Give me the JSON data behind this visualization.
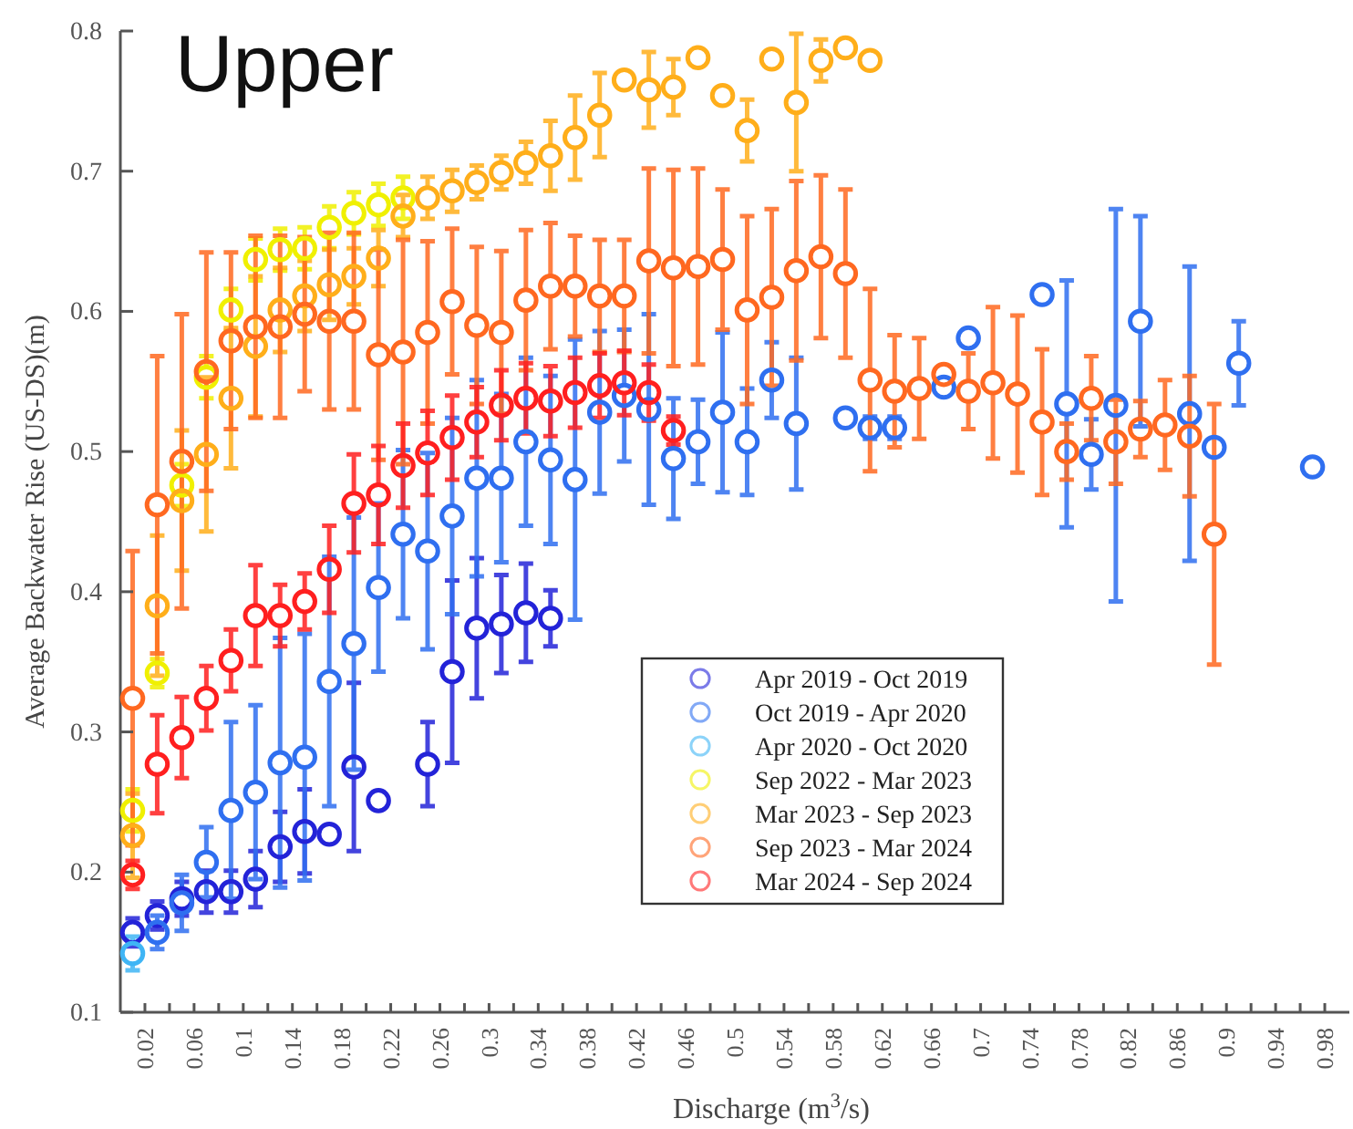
{
  "chart_data": {
    "type": "scatter",
    "title": "Upper",
    "xlabel": "Discharge (m$^{3}$/s)",
    "ylabel": "Average Backwater Rise (US-DS)(m)",
    "xlim": [
      0,
      1
    ],
    "ylim": [
      0.1,
      0.8
    ],
    "xticks": [
      0.02,
      {
        "value": 0.04,
        "label": null
      },
      0.06,
      {
        "value": 0.08,
        "label": null
      },
      0.1,
      {
        "value": 0.12,
        "label": null
      },
      0.14,
      {
        "value": 0.16,
        "label": null
      },
      0.18,
      {
        "value": 0.2,
        "label": null
      },
      0.22,
      {
        "value": 0.24,
        "label": null
      },
      0.26,
      {
        "value": 0.28,
        "label": null
      },
      0.3,
      {
        "value": 0.32,
        "label": null
      },
      0.34,
      {
        "value": 0.36,
        "label": null
      },
      0.38,
      {
        "value": 0.4,
        "label": null
      },
      0.42,
      {
        "value": 0.44,
        "label": null
      },
      0.46,
      {
        "value": 0.48,
        "label": null
      },
      0.5,
      {
        "value": 0.52,
        "label": null
      },
      0.54,
      {
        "value": 0.56,
        "label": null
      },
      0.58,
      {
        "value": 0.6,
        "label": null
      },
      0.62,
      {
        "value": 0.64,
        "label": null
      },
      0.66,
      {
        "value": 0.68,
        "label": null
      },
      0.7,
      {
        "value": 0.72,
        "label": null
      },
      0.74,
      {
        "value": 0.76,
        "label": null
      },
      0.78,
      {
        "value": 0.8,
        "label": null
      },
      0.82,
      {
        "value": 0.84,
        "label": null
      },
      0.86,
      {
        "value": 0.88,
        "label": null
      },
      0.9,
      {
        "value": 0.92,
        "label": null
      },
      0.94,
      {
        "value": 0.96,
        "label": null
      },
      0.98
    ],
    "yticks": [
      0.1,
      0.2,
      0.3,
      0.4,
      0.5,
      0.6,
      0.7,
      0.8
    ],
    "grid": false,
    "legend": "bottom",
    "marker": "circle",
    "series": [
      {
        "name": "Apr 2019 - Oct 2019",
        "color": "#2323d8",
        "x": [
          0.01,
          0.03,
          0.05,
          0.07,
          0.09,
          0.11,
          0.13,
          0.15,
          0.17,
          0.19,
          0.21,
          0.25,
          0.27,
          0.29,
          0.31,
          0.33,
          0.35
        ],
        "values": [
          0.157,
          0.169,
          0.181,
          0.186,
          0.186,
          0.195,
          0.218,
          0.229,
          0.227,
          0.275,
          0.251,
          0.277,
          0.343,
          0.374,
          0.377,
          0.385,
          0.381
        ],
        "errors": [
          0.01,
          0.01,
          0.012,
          0.015,
          0.015,
          0.02,
          0.025,
          0.03,
          null,
          0.06,
          null,
          0.03,
          0.065,
          0.05,
          0.035,
          0.035,
          0.02
        ]
      },
      {
        "name": "Oct 2019 - Apr 2020",
        "color": "#2f6ff0",
        "x": [
          0.03,
          0.05,
          0.07,
          0.09,
          0.11,
          0.13,
          0.15,
          0.17,
          0.19,
          0.21,
          0.23,
          0.25,
          0.27,
          0.29,
          0.31,
          0.33,
          0.35,
          0.37,
          0.39,
          0.41,
          0.43,
          0.45,
          0.47,
          0.49,
          0.51,
          0.53,
          0.55,
          0.59,
          0.61,
          0.63,
          0.67,
          0.69,
          0.75,
          0.77,
          0.79,
          0.81,
          0.83,
          0.87,
          0.89,
          0.91,
          0.97
        ],
        "values": [
          0.157,
          0.178,
          0.207,
          0.244,
          0.257,
          0.278,
          0.282,
          0.336,
          0.363,
          0.403,
          0.441,
          0.429,
          0.454,
          0.481,
          0.481,
          0.507,
          0.494,
          0.48,
          0.528,
          0.54,
          0.53,
          0.495,
          0.507,
          0.528,
          0.507,
          0.551,
          0.52,
          0.524,
          0.517,
          0.517,
          0.546,
          0.581,
          0.612,
          0.534,
          0.498,
          0.533,
          0.593,
          0.527,
          0.503,
          0.563,
          0.489
        ],
        "errors": [
          0.012,
          0.02,
          0.025,
          0.063,
          0.062,
          0.089,
          0.088,
          0.089,
          0.09,
          0.06,
          0.06,
          0.07,
          0.07,
          0.07,
          0.06,
          0.06,
          0.06,
          0.1,
          0.058,
          0.047,
          0.068,
          0.043,
          0.03,
          0.057,
          0.038,
          0.027,
          0.047,
          null,
          0.008,
          0.008,
          null,
          null,
          null,
          0.088,
          0.025,
          0.14,
          0.075,
          0.105,
          null,
          0.03,
          null
        ]
      },
      {
        "name": "Apr 2020 - Oct 2020",
        "color": "#3fb5f5",
        "x": [
          0.01
        ],
        "values": [
          0.142
        ],
        "errors": [
          0.012
        ]
      },
      {
        "name": "Sep 2022 - Mar 2023",
        "color": "#f0f000",
        "x": [
          0.01,
          0.03,
          0.05,
          0.07,
          0.09,
          0.11,
          0.13,
          0.15,
          0.17,
          0.19,
          0.21,
          0.23
        ],
        "values": [
          0.244,
          0.342,
          0.476,
          0.553,
          0.601,
          0.637,
          0.644,
          0.645,
          0.66,
          0.67,
          0.676,
          0.681
        ],
        "errors": [
          0.015,
          0.01,
          0.015,
          0.015,
          0.015,
          0.015,
          0.015,
          0.015,
          0.015,
          0.015,
          0.015,
          0.015
        ]
      },
      {
        "name": "Mar 2023 - Sep 2023",
        "color": "#ffae1a",
        "x": [
          0.01,
          0.03,
          0.05,
          0.07,
          0.09,
          0.11,
          0.13,
          0.15,
          0.17,
          0.19,
          0.21,
          0.23,
          0.25,
          0.27,
          0.29,
          0.31,
          0.33,
          0.35,
          0.37,
          0.39,
          0.41,
          0.43,
          0.45,
          0.47,
          0.49,
          0.51,
          0.53,
          0.55,
          0.57,
          0.59,
          0.61
        ],
        "values": [
          0.226,
          0.39,
          0.465,
          0.498,
          0.538,
          0.575,
          0.601,
          0.611,
          0.619,
          0.625,
          0.638,
          0.668,
          0.681,
          0.686,
          0.692,
          0.699,
          0.706,
          0.711,
          0.724,
          0.74,
          0.765,
          0.758,
          0.76,
          0.781,
          0.754,
          0.729,
          0.78,
          0.749,
          0.779,
          0.788,
          0.779
        ],
        "errors": [
          0.03,
          0.05,
          0.05,
          0.055,
          0.05,
          0.05,
          0.03,
          0.025,
          0.025,
          0.02,
          0.02,
          0.015,
          0.015,
          0.015,
          0.012,
          0.012,
          0.015,
          0.025,
          0.03,
          0.03,
          null,
          0.027,
          0.02,
          null,
          null,
          0.022,
          null,
          0.049,
          0.015,
          null,
          null
        ]
      },
      {
        "name": "Sep 2023 - Mar 2024",
        "color": "#ff6820",
        "x": [
          0.01,
          0.03,
          0.05,
          0.07,
          0.09,
          0.11,
          0.13,
          0.15,
          0.17,
          0.19,
          0.21,
          0.23,
          0.25,
          0.27,
          0.29,
          0.31,
          0.33,
          0.35,
          0.37,
          0.39,
          0.41,
          0.43,
          0.45,
          0.47,
          0.49,
          0.51,
          0.53,
          0.55,
          0.57,
          0.59,
          0.61,
          0.63,
          0.65,
          0.67,
          0.69,
          0.71,
          0.73,
          0.75,
          0.77,
          0.79,
          0.81,
          0.83,
          0.85,
          0.87,
          0.89
        ],
        "values": [
          0.324,
          0.462,
          0.493,
          0.557,
          0.579,
          0.589,
          0.589,
          0.598,
          0.593,
          0.593,
          0.569,
          0.571,
          0.585,
          0.607,
          0.59,
          0.585,
          0.608,
          0.618,
          0.618,
          0.611,
          0.611,
          0.636,
          0.631,
          0.632,
          0.637,
          0.601,
          0.61,
          0.629,
          0.639,
          0.627,
          0.551,
          0.543,
          0.545,
          0.555,
          0.543,
          0.549,
          0.541,
          0.521,
          0.5,
          0.538,
          0.507,
          0.516,
          0.519,
          0.511,
          0.441
        ],
        "errors": [
          0.105,
          0.106,
          0.105,
          0.085,
          0.063,
          0.065,
          0.065,
          0.055,
          0.063,
          0.063,
          0.075,
          0.08,
          0.065,
          0.052,
          0.056,
          0.058,
          0.05,
          0.045,
          0.036,
          0.04,
          0.04,
          0.066,
          0.07,
          0.07,
          0.05,
          0.067,
          0.063,
          0.064,
          0.058,
          0.06,
          0.065,
          0.04,
          0.036,
          null,
          0.027,
          0.054,
          0.056,
          0.052,
          0.02,
          0.03,
          0.03,
          0.02,
          0.032,
          0.043,
          0.093
        ]
      },
      {
        "name": "Mar 2024 - Sep 2024",
        "color": "#ff1f1f",
        "x": [
          0.01,
          0.03,
          0.05,
          0.07,
          0.09,
          0.11,
          0.13,
          0.15,
          0.17,
          0.19,
          0.21,
          0.23,
          0.25,
          0.27,
          0.29,
          0.31,
          0.33,
          0.35,
          0.37,
          0.39,
          0.41,
          0.43,
          0.45
        ],
        "values": [
          0.198,
          0.277,
          0.296,
          0.324,
          0.351,
          0.383,
          0.383,
          0.393,
          0.416,
          0.463,
          0.469,
          0.49,
          0.499,
          0.51,
          0.521,
          0.533,
          0.538,
          0.536,
          0.542,
          0.547,
          0.549,
          0.542,
          0.515
        ],
        "errors": [
          0.01,
          0.035,
          0.029,
          0.023,
          0.022,
          0.036,
          0.022,
          0.02,
          0.031,
          0.035,
          0.035,
          0.03,
          0.03,
          0.03,
          0.025,
          0.025,
          0.025,
          0.025,
          0.025,
          0.023,
          0.023,
          0.02,
          0.01
        ]
      }
    ]
  }
}
